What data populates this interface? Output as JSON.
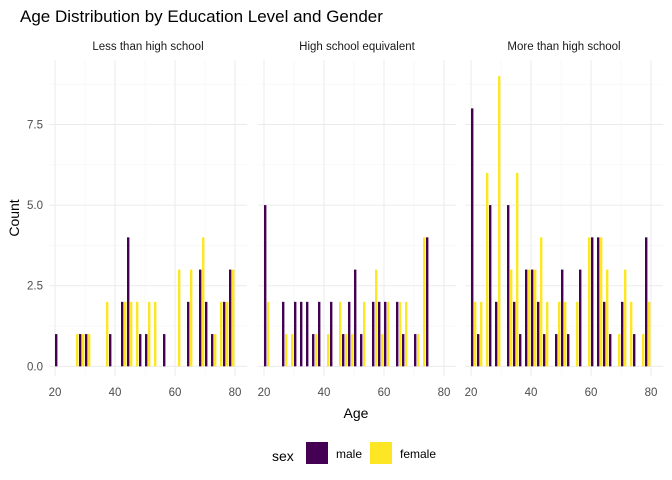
{
  "chart_data": {
    "type": "bar",
    "title": "Age Distribution by Education Level and Gender",
    "xlabel": "Age",
    "ylabel": "Count",
    "xlim": [
      18,
      84
    ],
    "ylim": [
      -0.3,
      9.5
    ],
    "x_ticks": [
      "20",
      "40",
      "60",
      "80"
    ],
    "x_tick_values": [
      20,
      40,
      60,
      80
    ],
    "y_ticks": [
      "0.0",
      "2.5",
      "5.0",
      "7.5"
    ],
    "y_tick_values": [
      0,
      2.5,
      5,
      7.5
    ],
    "grid": true,
    "legend": {
      "title": "sex",
      "placement": "bottom",
      "entries": [
        {
          "label": "male",
          "color": "#440154"
        },
        {
          "label": "female",
          "color": "#FDE725"
        }
      ]
    },
    "bin_width": 2,
    "panels": [
      {
        "label": "Less than high school",
        "series": [
          {
            "key": "male",
            "points": [
              [
                20,
                1
              ],
              [
                28,
                1
              ],
              [
                30,
                1
              ],
              [
                38,
                1
              ],
              [
                42,
                2
              ],
              [
                44,
                4
              ],
              [
                48,
                1
              ],
              [
                50,
                1
              ],
              [
                56,
                1
              ],
              [
                64,
                2
              ],
              [
                68,
                3
              ],
              [
                70,
                2
              ],
              [
                72,
                1
              ],
              [
                76,
                2
              ],
              [
                78,
                3
              ]
            ]
          },
          {
            "key": "female",
            "points": [
              [
                26,
                1
              ],
              [
                28,
                1
              ],
              [
                30,
                1
              ],
              [
                36,
                2
              ],
              [
                42,
                2
              ],
              [
                44,
                2
              ],
              [
                46,
                2
              ],
              [
                50,
                2
              ],
              [
                52,
                2
              ],
              [
                60,
                3
              ],
              [
                64,
                3
              ],
              [
                68,
                4
              ],
              [
                72,
                1
              ],
              [
                74,
                2
              ],
              [
                76,
                2
              ],
              [
                78,
                3
              ]
            ]
          }
        ]
      },
      {
        "label": "High school equivalent",
        "series": [
          {
            "key": "male",
            "points": [
              [
                20,
                5
              ],
              [
                26,
                2
              ],
              [
                30,
                2
              ],
              [
                32,
                2
              ],
              [
                34,
                2
              ],
              [
                36,
                1
              ],
              [
                38,
                2
              ],
              [
                42,
                2
              ],
              [
                46,
                1
              ],
              [
                48,
                2
              ],
              [
                50,
                3
              ],
              [
                52,
                1
              ],
              [
                56,
                2
              ],
              [
                58,
                2
              ],
              [
                60,
                2
              ],
              [
                64,
                2
              ],
              [
                66,
                1
              ],
              [
                70,
                1
              ],
              [
                74,
                4
              ]
            ]
          },
          {
            "key": "female",
            "points": [
              [
                20,
                2
              ],
              [
                26,
                1
              ],
              [
                28,
                1
              ],
              [
                36,
                1
              ],
              [
                40,
                1
              ],
              [
                44,
                2
              ],
              [
                46,
                1
              ],
              [
                48,
                1
              ],
              [
                52,
                2
              ],
              [
                56,
                3
              ],
              [
                58,
                1
              ],
              [
                60,
                2
              ],
              [
                64,
                2
              ],
              [
                66,
                2
              ],
              [
                70,
                1
              ],
              [
                72,
                4
              ]
            ]
          }
        ]
      },
      {
        "label": "More than high school",
        "series": [
          {
            "key": "male",
            "points": [
              [
                20,
                8
              ],
              [
                22,
                1
              ],
              [
                26,
                5
              ],
              [
                28,
                2
              ],
              [
                32,
                5
              ],
              [
                34,
                2
              ],
              [
                36,
                1
              ],
              [
                38,
                3
              ],
              [
                40,
                3
              ],
              [
                42,
                2
              ],
              [
                44,
                1
              ],
              [
                48,
                1
              ],
              [
                50,
                3
              ],
              [
                52,
                1
              ],
              [
                56,
                3
              ],
              [
                60,
                4
              ],
              [
                62,
                4
              ],
              [
                64,
                2
              ],
              [
                66,
                1
              ],
              [
                70,
                2
              ],
              [
                74,
                1
              ],
              [
                78,
                4
              ]
            ]
          },
          {
            "key": "female",
            "points": [
              [
                20,
                2
              ],
              [
                22,
                2
              ],
              [
                24,
                6
              ],
              [
                28,
                9
              ],
              [
                32,
                3
              ],
              [
                34,
                6
              ],
              [
                38,
                3
              ],
              [
                40,
                3
              ],
              [
                42,
                4
              ],
              [
                44,
                2
              ],
              [
                48,
                2
              ],
              [
                50,
                2
              ],
              [
                54,
                2
              ],
              [
                58,
                4
              ],
              [
                62,
                4
              ],
              [
                64,
                3
              ],
              [
                68,
                1
              ],
              [
                70,
                3
              ],
              [
                72,
                2
              ],
              [
                76,
                1
              ],
              [
                78,
                2
              ]
            ]
          }
        ]
      }
    ]
  }
}
